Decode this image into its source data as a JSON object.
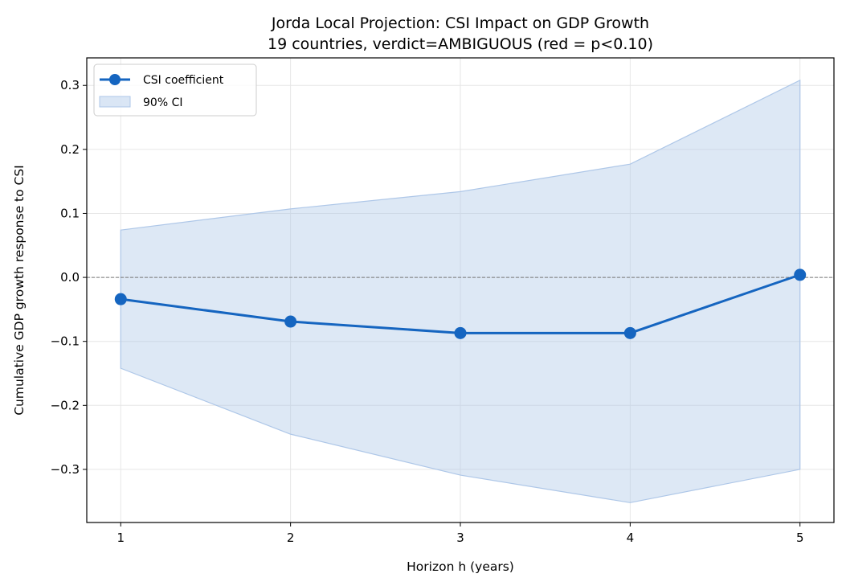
{
  "chart_data": {
    "type": "line",
    "title": "Jorda Local Projection: CSI Impact on GDP Growth",
    "subtitle": "19 countries, verdict=AMBIGUOUS (red = p<0.10)",
    "xlabel": "Horizon h (years)",
    "ylabel": "Cumulative GDP growth response to CSI",
    "xlim": [
      0.8,
      5.2
    ],
    "ylim": [
      -0.383,
      0.343
    ],
    "x_ticks": [
      1,
      2,
      3,
      4,
      5
    ],
    "y_ticks": [
      -0.3,
      -0.2,
      -0.1,
      0.0,
      0.1,
      0.2,
      0.3
    ],
    "y_tick_labels": [
      "−0.3",
      "−0.2",
      "−0.1",
      "0.0",
      "0.1",
      "0.2",
      "0.3"
    ],
    "grid": true,
    "reference_line": 0.0,
    "legend_position": "top-left",
    "x": [
      1,
      2,
      3,
      4,
      5
    ],
    "series": [
      {
        "name": "CSI coefficient",
        "values": [
          -0.034,
          -0.069,
          -0.087,
          -0.087,
          0.004
        ],
        "color": "#1565c0"
      }
    ],
    "ci": {
      "name": "90% CI",
      "lower": [
        -0.142,
        -0.245,
        -0.309,
        -0.352,
        -0.3
      ],
      "upper": [
        0.074,
        0.107,
        0.134,
        0.177,
        0.308
      ],
      "color": "#aec7e8"
    }
  }
}
